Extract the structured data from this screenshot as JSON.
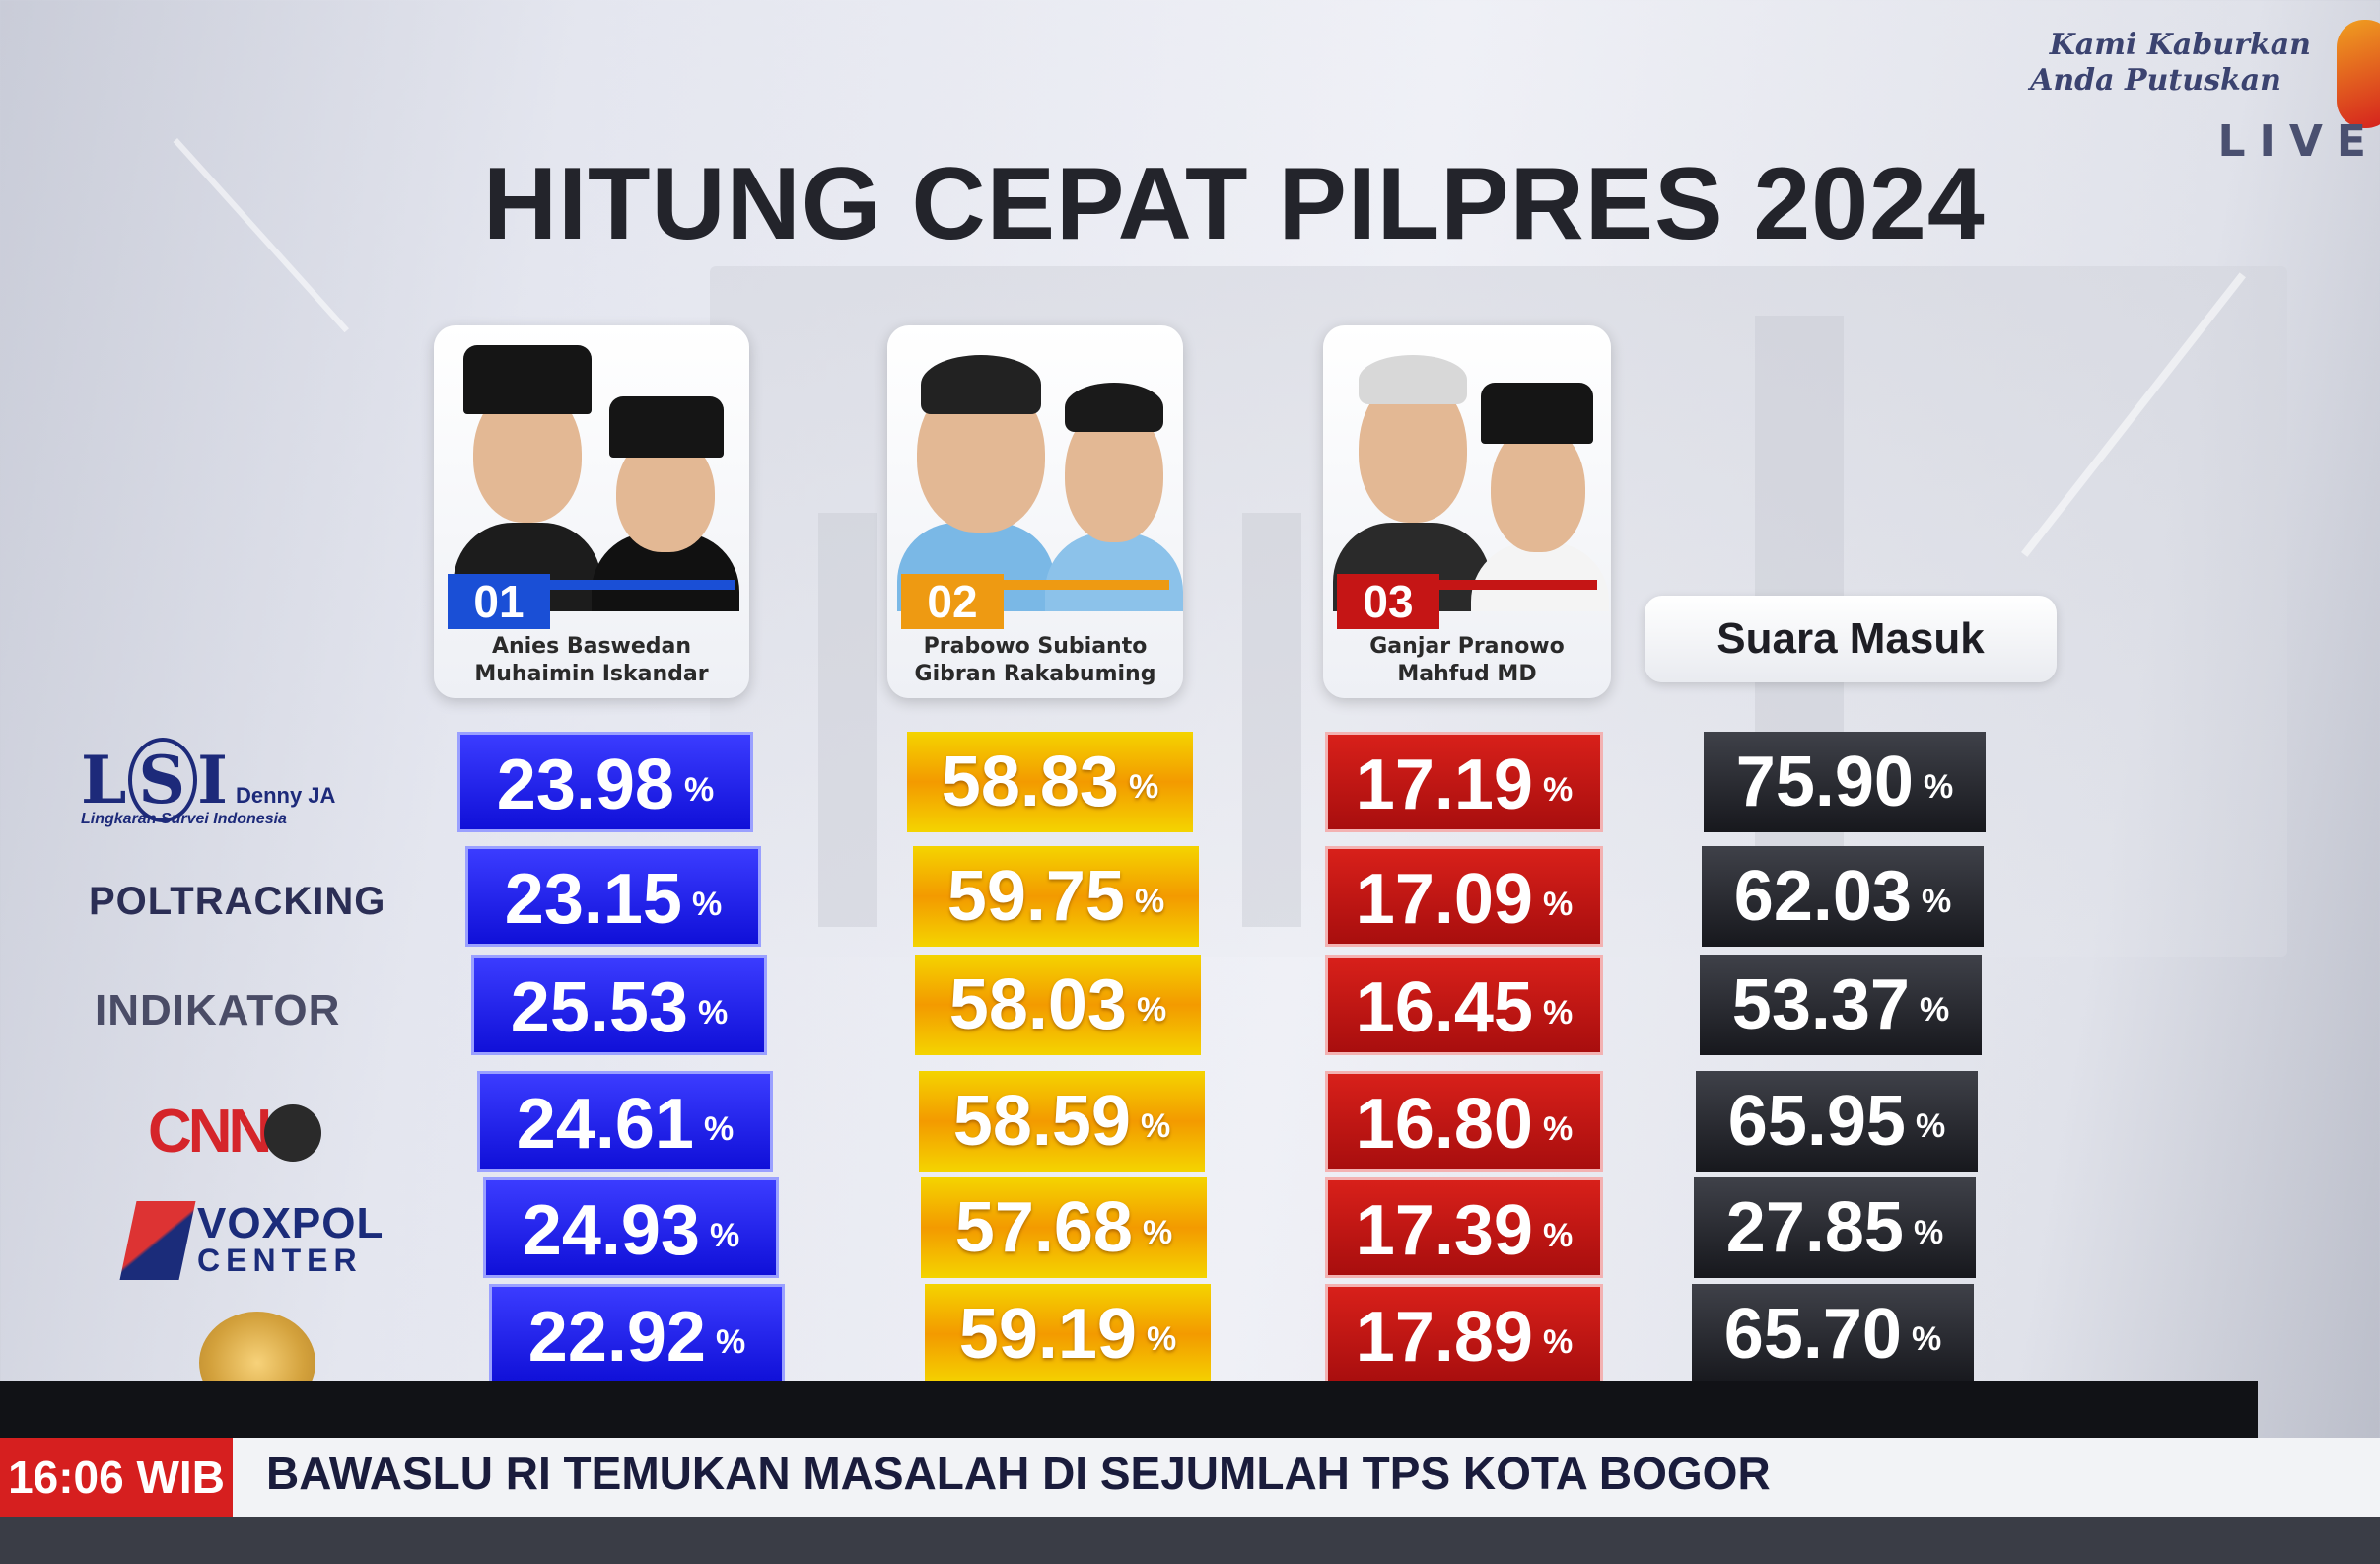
{
  "brand": {
    "line1": "Kami Kaburkan",
    "line2": "Anda Putuskan",
    "live": "LIVE"
  },
  "title": "HITUNG CEPAT PILPRES 2024",
  "candidates": [
    {
      "number": "01",
      "name1": "Anies Baswedan",
      "name2": "Muhaimin Iskandar",
      "color": "#1a1ae8"
    },
    {
      "number": "02",
      "name1": "Prabowo Subianto",
      "name2": "Gibran Rakabuming",
      "color": "#f39a00"
    },
    {
      "number": "03",
      "name1": "Ganjar Pranowo",
      "name2": "Mahfud MD",
      "color": "#c51515"
    }
  ],
  "suara_header": "Suara Masuk",
  "pct_symbol": "%",
  "pollsters": [
    {
      "logo": "LSI Denny JA",
      "logo_sub": "Lingkaran Survei Indonesia",
      "c1": "23.98",
      "c2": "58.83",
      "c3": "17.19",
      "suara": "75.90"
    },
    {
      "logo": "POLTRACKING",
      "c1": "23.15",
      "c2": "59.75",
      "c3": "17.09",
      "suara": "62.03"
    },
    {
      "logo": "INDIKATOR",
      "c1": "25.53",
      "c2": "58.03",
      "c3": "16.45",
      "suara": "53.37"
    },
    {
      "logo": "CNN",
      "c1": "24.61",
      "c2": "58.59",
      "c3": "16.80",
      "suara": "65.95"
    },
    {
      "logo": "VOXPOL CENTER",
      "c1": "24.93",
      "c2": "57.68",
      "c3": "17.39",
      "suara": "27.85"
    },
    {
      "logo": "",
      "c1": "22.92",
      "c2": "59.19",
      "c3": "17.89",
      "suara": "65.70"
    }
  ],
  "ticker": {
    "time": "16:06 WIB",
    "headline": "BAWASLU RI TEMUKAN MASALAH DI SEJUMLAH TPS KOTA BOGOR"
  }
}
